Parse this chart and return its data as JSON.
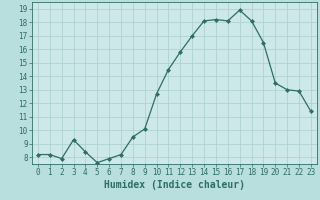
{
  "x": [
    0,
    1,
    2,
    3,
    4,
    5,
    6,
    7,
    8,
    9,
    10,
    11,
    12,
    13,
    14,
    15,
    16,
    17,
    18,
    19,
    20,
    21,
    22,
    23
  ],
  "y": [
    8.2,
    8.2,
    7.9,
    9.3,
    8.4,
    7.6,
    7.9,
    8.2,
    9.5,
    10.1,
    12.7,
    14.5,
    15.8,
    17.0,
    18.1,
    18.2,
    18.1,
    18.9,
    18.1,
    16.5,
    13.5,
    13.0,
    12.9,
    11.4
  ],
  "line_color": "#2e6e63",
  "marker": "D",
  "markersize": 2.0,
  "linewidth": 0.9,
  "bg_color": "#b8dede",
  "plot_bg_color": "#cce8e8",
  "grid_color": "#aacece",
  "xlabel": "Humidex (Indice chaleur)",
  "xlim": [
    -0.5,
    23.5
  ],
  "ylim": [
    7.5,
    19.5
  ],
  "yticks": [
    8,
    9,
    10,
    11,
    12,
    13,
    14,
    15,
    16,
    17,
    18,
    19
  ],
  "xticks": [
    0,
    1,
    2,
    3,
    4,
    5,
    6,
    7,
    8,
    9,
    10,
    11,
    12,
    13,
    14,
    15,
    16,
    17,
    18,
    19,
    20,
    21,
    22,
    23
  ],
  "tick_color": "#2e6e63",
  "label_color": "#2e6e63",
  "xlabel_fontsize": 7,
  "tick_fontsize": 5.5
}
